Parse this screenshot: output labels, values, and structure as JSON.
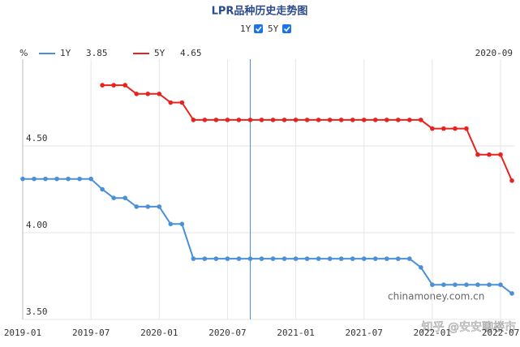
{
  "chart_data": {
    "type": "line",
    "title": "LPR品种历史走势图",
    "unit": "%",
    "x": [
      "2019-01",
      "2019-02",
      "2019-03",
      "2019-04",
      "2019-05",
      "2019-06",
      "2019-07",
      "2019-08",
      "2019-09",
      "2019-10",
      "2019-11",
      "2019-12",
      "2020-01",
      "2020-02",
      "2020-03",
      "2020-04",
      "2020-05",
      "2020-06",
      "2020-07",
      "2020-08",
      "2020-09",
      "2020-10",
      "2020-11",
      "2020-12",
      "2021-01",
      "2021-02",
      "2021-03",
      "2021-04",
      "2021-05",
      "2021-06",
      "2021-07",
      "2021-08",
      "2021-09",
      "2021-10",
      "2021-11",
      "2021-12",
      "2022-01",
      "2022-02",
      "2022-03",
      "2022-04",
      "2022-05",
      "2022-06",
      "2022-07",
      "2022-08"
    ],
    "series": [
      {
        "name": "1Y",
        "color": "#4a90d9",
        "values": [
          4.31,
          4.31,
          4.31,
          4.31,
          4.31,
          4.31,
          4.31,
          4.25,
          4.2,
          4.2,
          4.15,
          4.15,
          4.15,
          4.05,
          4.05,
          3.85,
          3.85,
          3.85,
          3.85,
          3.85,
          3.85,
          3.85,
          3.85,
          3.85,
          3.85,
          3.85,
          3.85,
          3.85,
          3.85,
          3.85,
          3.85,
          3.85,
          3.85,
          3.85,
          3.85,
          3.8,
          3.7,
          3.7,
          3.7,
          3.7,
          3.7,
          3.7,
          3.7,
          3.65
        ]
      },
      {
        "name": "5Y",
        "color": "#e8231e",
        "values": [
          null,
          null,
          null,
          null,
          null,
          null,
          null,
          4.85,
          4.85,
          4.85,
          4.8,
          4.8,
          4.8,
          4.75,
          4.75,
          4.65,
          4.65,
          4.65,
          4.65,
          4.65,
          4.65,
          4.65,
          4.65,
          4.65,
          4.65,
          4.65,
          4.65,
          4.65,
          4.65,
          4.65,
          4.65,
          4.65,
          4.65,
          4.65,
          4.65,
          4.65,
          4.6,
          4.6,
          4.6,
          4.6,
          4.45,
          4.45,
          4.45,
          4.3
        ]
      }
    ],
    "cursor": {
      "x": "2020-09",
      "values": [
        3.85,
        4.65
      ]
    },
    "xticks": [
      "2019-01",
      "2019-07",
      "2020-01",
      "2020-07",
      "2021-01",
      "2021-07",
      "2022-01",
      "2022-07"
    ],
    "ylim": [
      3.5,
      5.0
    ],
    "yticks": [
      {
        "value": 3.5,
        "label": "3.50"
      },
      {
        "value": 4.0,
        "label": "4.00"
      },
      {
        "value": 4.5,
        "label": "4.50"
      }
    ],
    "grid": true,
    "watermarks": [
      "chinamoney.com.cn",
      "知乎 @安安聊楼市"
    ]
  }
}
